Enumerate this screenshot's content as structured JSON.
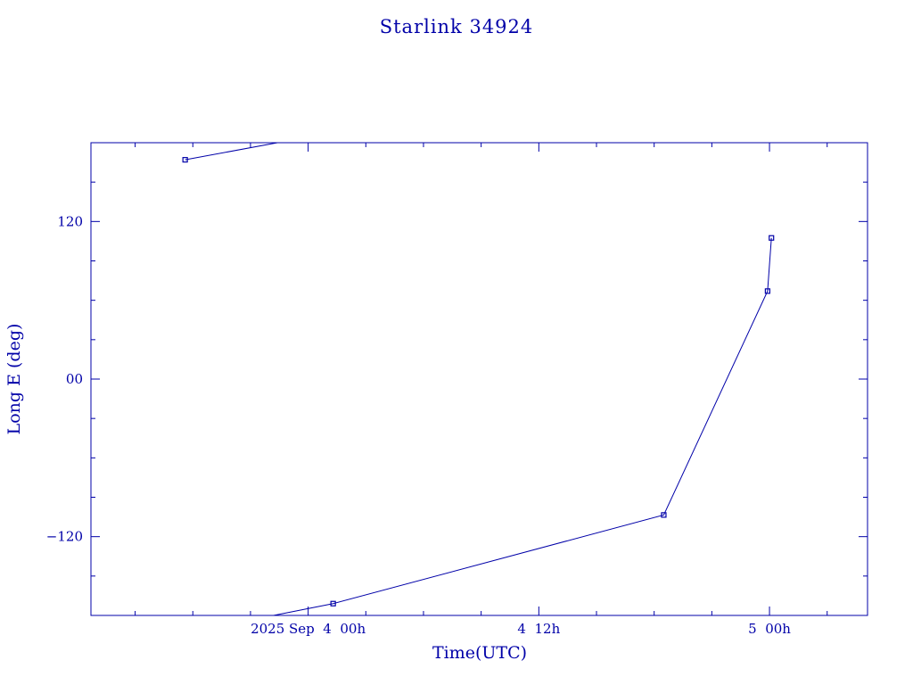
{
  "chart_data": {
    "type": "line",
    "title": "Starlink 34924",
    "xlabel": "Time(UTC)",
    "ylabel": "Long E (deg)",
    "x_tick_labels": [
      "2025 Sep  4  00h",
      "4  12h",
      "5  00h"
    ],
    "x_ticks_hours": [
      0,
      12,
      24
    ],
    "x_range_hours": [
      -11.3,
      29.1
    ],
    "y_tick_labels": [
      "120",
      "00",
      "−120"
    ],
    "y_ticks": [
      120,
      0,
      -120
    ],
    "y_range": [
      -180,
      180
    ],
    "grid": false,
    "series": [
      {
        "points": [
          {
            "t_hours": -6.4,
            "lon": 167.0
          },
          {
            "t_hours": -1.6,
            "lon": 180.0
          }
        ],
        "markers": [
          {
            "t_hours": -6.4,
            "lon": 167.0
          }
        ]
      },
      {
        "points": [
          {
            "t_hours": -1.8,
            "lon": -180.0
          },
          {
            "t_hours": 1.3,
            "lon": -171.0
          },
          {
            "t_hours": 18.5,
            "lon": -103.5
          },
          {
            "t_hours": 23.9,
            "lon": 67.0
          },
          {
            "t_hours": 24.1,
            "lon": 107.5
          }
        ],
        "markers": [
          {
            "t_hours": 1.3,
            "lon": -171.0
          },
          {
            "t_hours": 18.5,
            "lon": -103.5
          },
          {
            "t_hours": 23.9,
            "lon": 67.0
          },
          {
            "t_hours": 24.1,
            "lon": 107.5
          }
        ]
      }
    ],
    "color": "#0000a8"
  }
}
